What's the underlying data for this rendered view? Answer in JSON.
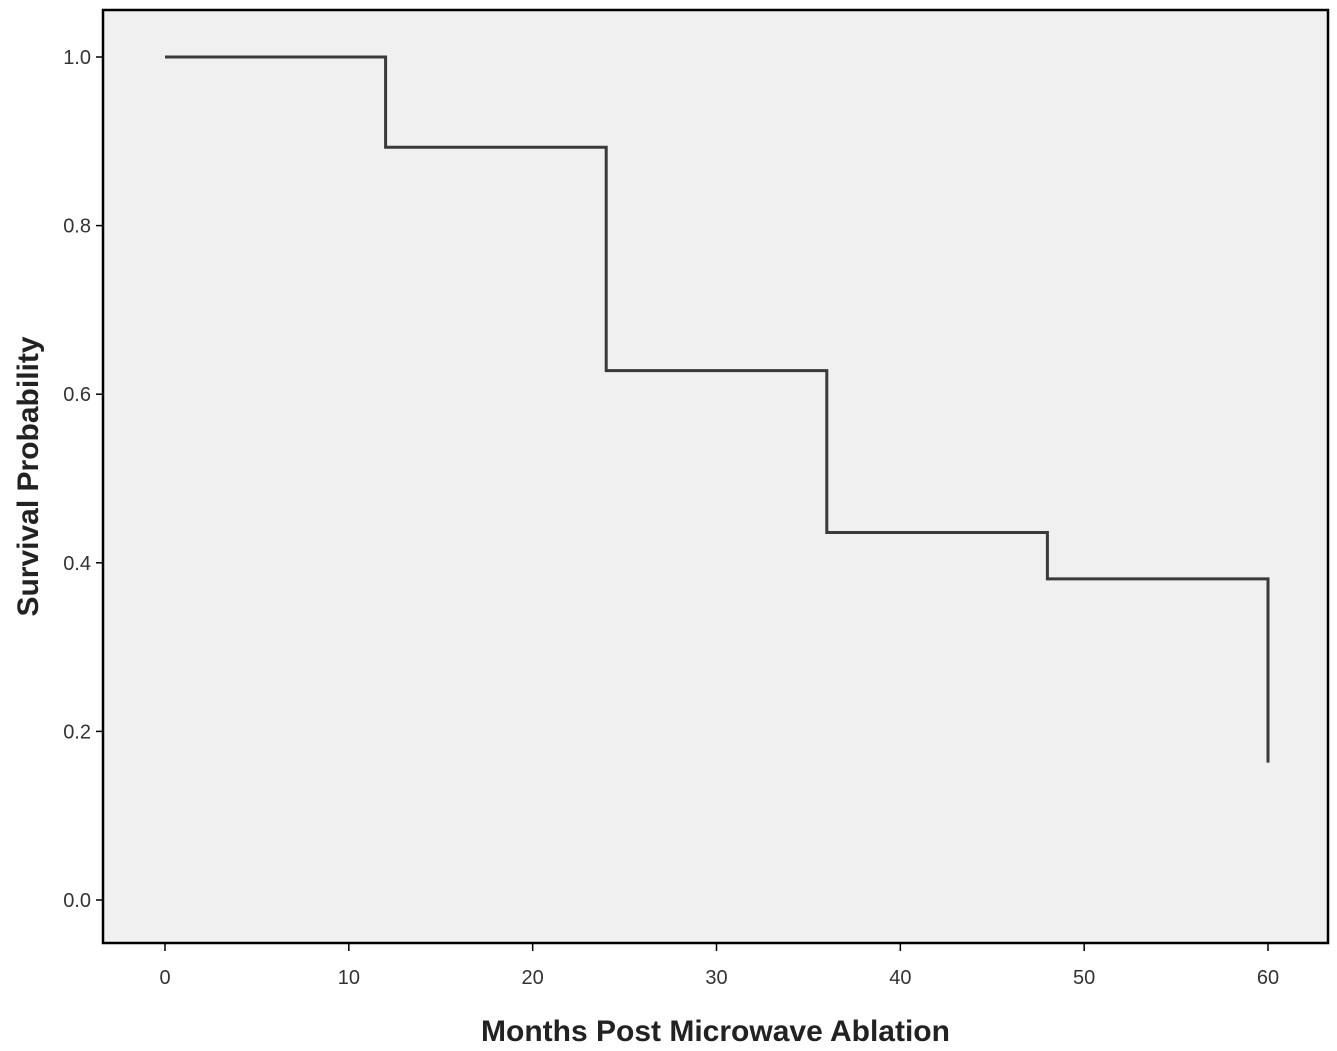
{
  "chart_data": {
    "type": "line",
    "step": true,
    "xlabel": "Months Post Microwave Ablation",
    "ylabel": "Survival Probability",
    "xlim": [
      0,
      60
    ],
    "ylim": [
      0.0,
      1.0
    ],
    "x_ticks": [
      0,
      10,
      20,
      30,
      40,
      50,
      60
    ],
    "y_ticks": [
      0.0,
      0.2,
      0.4,
      0.6,
      0.8,
      1.0
    ],
    "x_tick_labels": [
      "0",
      "10",
      "20",
      "30",
      "40",
      "50",
      "60"
    ],
    "y_tick_labels": [
      "0.0",
      "0.2",
      "0.4",
      "0.6",
      "0.8",
      "1.0"
    ],
    "grid": false,
    "series": [
      {
        "x": [
          0,
          12,
          24,
          36,
          48,
          60
        ],
        "y": [
          1.0,
          0.893,
          0.628,
          0.436,
          0.381,
          0.163
        ],
        "color": "#3a3a3a"
      }
    ],
    "colors": {
      "plot_background": "#f0f0f0",
      "frame": "#000000",
      "line": "#3a3a3a"
    }
  }
}
